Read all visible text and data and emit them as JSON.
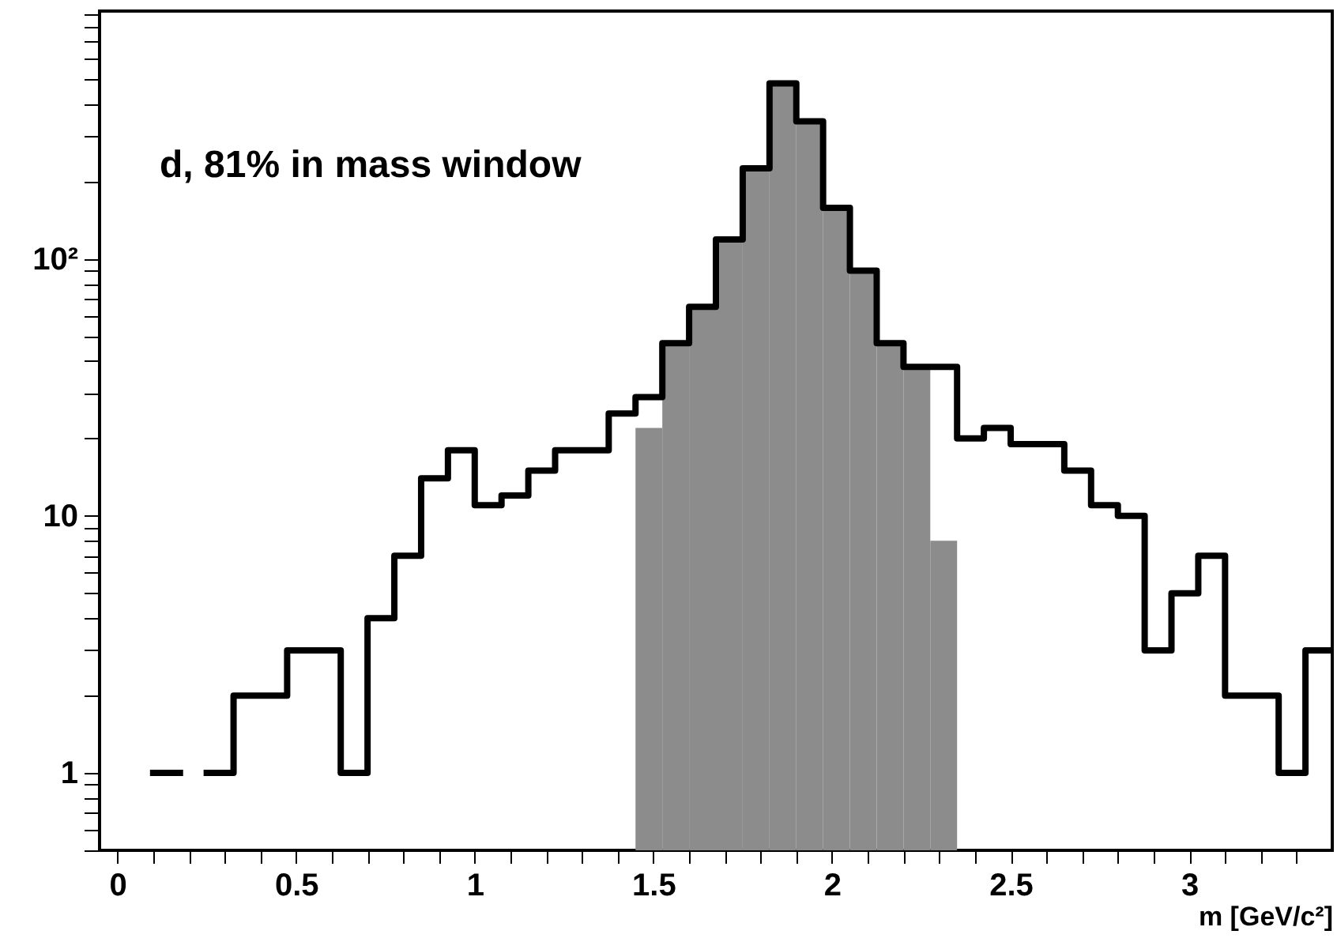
{
  "chart_data": {
    "type": "histogram",
    "xlabel": "m [GeV/c²]",
    "annotations": [
      "d, 81% in mass window"
    ],
    "bins": [
      1.45,
      1.525,
      1.6,
      1.675,
      1.75,
      1.825,
      1.9,
      1.975,
      2.05,
      2.125,
      2.2,
      2.275,
      2.35
    ],
    "series": [
      {
        "type": "step",
        "color": "#000000",
        "x": [
          0.1,
          0.175,
          0.25,
          0.325,
          0.4,
          0.475,
          0.55,
          0.625,
          0.7,
          0.775,
          0.85,
          0.925,
          1.0,
          1.075,
          1.15,
          1.225,
          1.3,
          1.375,
          1.45,
          1.525,
          1.6,
          1.675,
          1.75,
          1.825,
          1.9,
          1.975,
          2.05,
          2.125,
          2.2,
          2.275,
          2.35,
          2.425,
          2.5,
          2.575,
          2.65,
          2.725,
          2.8,
          2.875,
          2.95,
          3.025,
          3.1,
          3.175,
          3.25,
          3.325,
          3.4
        ],
        "values": [
          1,
          null,
          1,
          2,
          2,
          3,
          3,
          1,
          4,
          7,
          14,
          18,
          11,
          12,
          15,
          18,
          18,
          25,
          29,
          47,
          65,
          119,
          225,
          481,
          343,
          158,
          90,
          47,
          38,
          38,
          20,
          22,
          19,
          19,
          15,
          11,
          10,
          3,
          5,
          7,
          2,
          2,
          1,
          3,
          3
        ]
      },
      {
        "color": "#8c8c8c",
        "values": [
          22,
          47,
          65,
          119,
          225,
          481,
          343,
          158,
          90,
          47,
          38,
          8
        ]
      }
    ],
    "xlim": [
      -0.05,
      3.4
    ],
    "xticks": [
      0,
      {
        "value": 0.1,
        "label": null
      },
      {
        "value": 0.2,
        "label": null
      },
      {
        "value": 0.3,
        "label": null
      },
      {
        "value": 0.4,
        "label": null
      },
      0.5,
      {
        "value": 0.6,
        "label": null
      },
      {
        "value": 0.7,
        "label": null
      },
      {
        "value": 0.8,
        "label": null
      },
      {
        "value": 0.9,
        "label": null
      },
      1,
      {
        "value": 1.1,
        "label": null
      },
      {
        "value": 1.2,
        "label": null
      },
      {
        "value": 1.3,
        "label": null
      },
      {
        "value": 1.4,
        "label": null
      },
      1.5,
      {
        "value": 1.6,
        "label": null
      },
      {
        "value": 1.7,
        "label": null
      },
      {
        "value": 1.8,
        "label": null
      },
      {
        "value": 1.9,
        "label": null
      },
      2,
      {
        "value": 2.1,
        "label": null
      },
      {
        "value": 2.2,
        "label": null
      },
      {
        "value": 2.3,
        "label": null
      },
      {
        "value": 2.4,
        "label": null
      },
      2.5,
      {
        "value": 2.6,
        "label": null
      },
      {
        "value": 2.7,
        "label": null
      },
      {
        "value": 2.8,
        "label": null
      },
      {
        "value": 2.9,
        "label": null
      },
      3,
      {
        "value": 3.1,
        "label": null
      },
      {
        "value": 3.2,
        "label": null
      },
      {
        "value": 3.3,
        "label": null
      }
    ],
    "ylim": [
      0.5,
      920
    ],
    "yticks": [
      {
        "value": 0.5,
        "label": null
      },
      {
        "value": 0.6,
        "label": null
      },
      {
        "value": 0.7,
        "label": null
      },
      {
        "value": 0.8,
        "label": null
      },
      {
        "value": 0.9,
        "label": null
      },
      1,
      {
        "value": 2,
        "label": null
      },
      {
        "value": 3,
        "label": null
      },
      {
        "value": 4,
        "label": null
      },
      {
        "value": 5,
        "label": null
      },
      {
        "value": 6,
        "label": null
      },
      {
        "value": 7,
        "label": null
      },
      {
        "value": 8,
        "label": null
      },
      {
        "value": 9,
        "label": null
      },
      10,
      {
        "value": 20,
        "label": null
      },
      {
        "value": 30,
        "label": null
      },
      {
        "value": 40,
        "label": null
      },
      {
        "value": 50,
        "label": null
      },
      {
        "value": 60,
        "label": null
      },
      {
        "value": 70,
        "label": null
      },
      {
        "value": 80,
        "label": null
      },
      {
        "value": 90,
        "label": null
      },
      {
        "value": 100,
        "label": "10²"
      },
      {
        "value": 200,
        "label": null
      },
      {
        "value": 300,
        "label": null
      },
      {
        "value": 400,
        "label": null
      },
      {
        "value": 500,
        "label": null
      },
      {
        "value": 600,
        "label": null
      },
      {
        "value": 700,
        "label": null
      },
      {
        "value": 800,
        "label": null
      },
      {
        "value": 900,
        "label": null
      }
    ],
    "log": "y",
    "grid": false
  }
}
